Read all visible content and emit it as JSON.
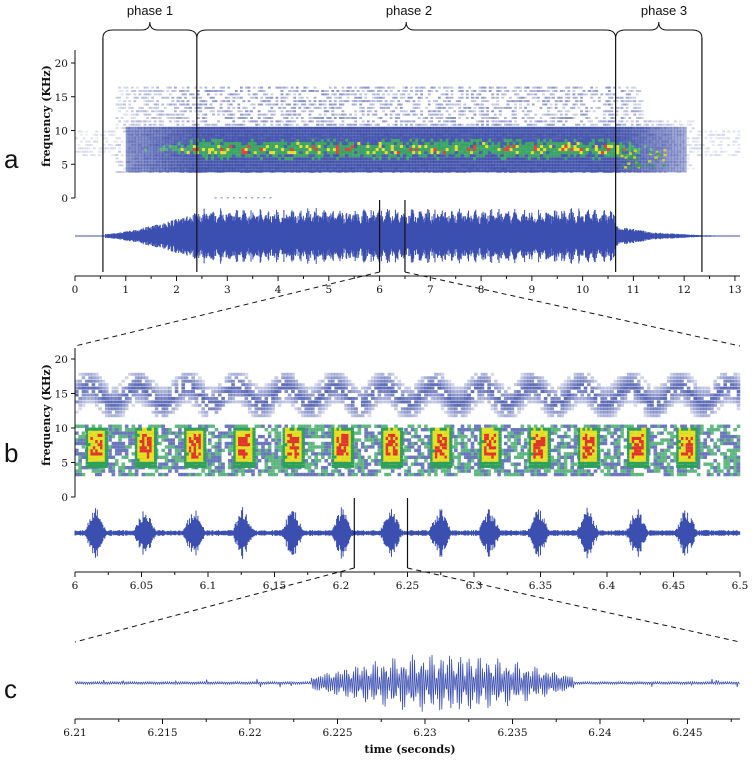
{
  "figure": {
    "panel_letters": [
      "a",
      "b",
      "c"
    ],
    "phase_labels": [
      "phase 1",
      "phase 2",
      "phase 3"
    ],
    "freq_axis_label": "frequency (KHz)",
    "time_axis_label": "time (seconds)"
  },
  "colors": {
    "waveform": "#3b4fb0",
    "spec_blue": "#3d4ea8",
    "spec_green": "#2fa05a",
    "spec_yellow": "#e6e020",
    "spec_red": "#e3342a",
    "axis": "#111111"
  },
  "chart_data": [
    {
      "type": "spectrogram",
      "panel": "a",
      "title": "",
      "xlabel": "",
      "ylabel": "frequency (KHz)",
      "xlim": [
        0,
        13.1
      ],
      "ylim": [
        0,
        22
      ],
      "x_ticks": [
        0,
        1,
        2,
        3,
        4,
        5,
        6,
        7,
        8,
        9,
        10,
        11,
        12,
        13
      ],
      "y_ticks": [
        0,
        5,
        10,
        15,
        20
      ],
      "phase_boundaries": [
        0.55,
        2.4,
        10.65,
        12.35
      ],
      "phases": [
        {
          "name": "phase 1",
          "start": 0.55,
          "end": 2.4
        },
        {
          "name": "phase 2",
          "start": 2.4,
          "end": 10.65
        },
        {
          "name": "phase 3",
          "start": 10.65,
          "end": 12.35
        }
      ],
      "zoom_window": [
        6.0,
        6.5
      ],
      "bands_khz": [
        {
          "low": 3.5,
          "high": 10.0,
          "start": 0.9,
          "end": 12.0,
          "intensity": "high"
        },
        {
          "low": 11.0,
          "high": 16.0,
          "start": 0.8,
          "end": 11.2,
          "intensity": "low"
        }
      ],
      "waveform": "oscillogram below spectrogram; amplitude rises 0.6–2.4 s, plateau 2.4–10.65 s, decays 10.65–12.35 s"
    },
    {
      "type": "spectrogram",
      "panel": "b",
      "xlabel": "",
      "ylabel": "frequency (KHz)",
      "xlim": [
        6.0,
        6.5
      ],
      "ylim": [
        0,
        22
      ],
      "x_ticks": [
        6,
        6.05,
        6.1,
        6.15,
        6.2,
        6.25,
        6.3,
        6.35,
        6.4,
        6.45,
        6.5
      ],
      "x_tick_labels": [
        "6",
        "6.05",
        "6.1",
        "6.15",
        "6.2",
        "6.25",
        "6.3",
        "6.35",
        "6.4",
        "6.45",
        "6.5"
      ],
      "y_ticks": [
        0,
        5,
        10,
        15,
        20
      ],
      "pulse_centers": [
        6.0155,
        6.0525,
        6.0895,
        6.1265,
        6.1635,
        6.2005,
        6.2375,
        6.2745,
        6.3115,
        6.3485,
        6.3855,
        6.4225,
        6.4595
      ],
      "pulse_band_khz": [
        4.0,
        10.0
      ],
      "upper_band_khz": [
        12.0,
        17.0
      ],
      "zoom_window": [
        6.21,
        6.25
      ]
    },
    {
      "type": "waveform",
      "panel": "c",
      "xlabel": "time (seconds)",
      "xlim": [
        6.21,
        6.248
      ],
      "x_ticks": [
        6.21,
        6.215,
        6.22,
        6.225,
        6.23,
        6.235,
        6.24,
        6.245
      ],
      "x_tick_labels": [
        "6.21",
        "6.215",
        "6.22",
        "6.225",
        "6.23",
        "6.235",
        "6.24",
        "6.245"
      ],
      "burst_window": [
        6.2235,
        6.2385
      ],
      "burst_peak": 6.2295
    }
  ]
}
